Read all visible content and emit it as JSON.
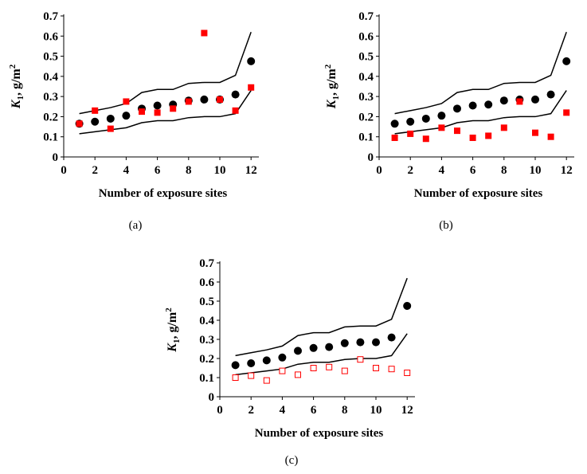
{
  "chart_data": [
    {
      "type": "scatter",
      "panel": "(a)",
      "xlabel": "Number of exposure sites",
      "ylabel_main": "K",
      "ylabel_sub": "1",
      "ylabel_unit": ", g/m",
      "ylabel_sup": "2",
      "xticks": [
        "0",
        "2",
        "4",
        "6",
        "8",
        "10",
        "12"
      ],
      "yticks": [
        "0",
        "0.1",
        "0.2",
        "0.3",
        "0.4",
        "0.5",
        "0.6",
        "0.7"
      ],
      "xlim": [
        0,
        12.5
      ],
      "ylim": [
        0,
        0.7
      ],
      "x": [
        1,
        2,
        3,
        4,
        5,
        6,
        7,
        8,
        9,
        10,
        11,
        12
      ],
      "mean": [
        0.165,
        0.175,
        0.19,
        0.205,
        0.24,
        0.255,
        0.26,
        0.28,
        0.285,
        0.285,
        0.31,
        0.475
      ],
      "upper": [
        0.215,
        0.23,
        0.245,
        0.265,
        0.32,
        0.335,
        0.335,
        0.365,
        0.37,
        0.37,
        0.405,
        0.62
      ],
      "lower": [
        0.115,
        0.125,
        0.135,
        0.145,
        0.17,
        0.18,
        0.18,
        0.195,
        0.2,
        0.2,
        0.215,
        0.33
      ],
      "series_label": "",
      "values": [
        0.165,
        0.23,
        0.14,
        0.275,
        0.225,
        0.22,
        0.24,
        0.275,
        0.615,
        0.285,
        0.23,
        0.345
      ],
      "marker": "filled",
      "color": "#ff0000"
    },
    {
      "type": "scatter",
      "panel": "(b)",
      "xlabel": "Number of exposure sites",
      "ylabel_main": "K",
      "ylabel_sub": "1",
      "ylabel_unit": ", g/m",
      "ylabel_sup": "2",
      "xticks": [
        "0",
        "2",
        "4",
        "6",
        "8",
        "10",
        "12"
      ],
      "yticks": [
        "0",
        "0.1",
        "0.2",
        "0.3",
        "0.4",
        "0.5",
        "0.6",
        "0.7"
      ],
      "xlim": [
        0,
        12.5
      ],
      "ylim": [
        0,
        0.7
      ],
      "x": [
        1,
        2,
        3,
        4,
        5,
        6,
        7,
        8,
        9,
        10,
        11,
        12
      ],
      "mean": [
        0.165,
        0.175,
        0.19,
        0.205,
        0.24,
        0.255,
        0.26,
        0.28,
        0.285,
        0.285,
        0.31,
        0.475
      ],
      "upper": [
        0.215,
        0.23,
        0.245,
        0.265,
        0.32,
        0.335,
        0.335,
        0.365,
        0.37,
        0.37,
        0.405,
        0.62
      ],
      "lower": [
        0.115,
        0.125,
        0.135,
        0.145,
        0.17,
        0.18,
        0.18,
        0.195,
        0.2,
        0.2,
        0.215,
        0.33
      ],
      "values": [
        0.095,
        0.115,
        0.09,
        0.145,
        0.13,
        0.095,
        0.105,
        0.145,
        0.275,
        0.12,
        0.1,
        0.22
      ],
      "marker": "filled",
      "color": "#ff0000"
    },
    {
      "type": "scatter",
      "panel": "(c)",
      "xlabel": "Number of exposure sites",
      "ylabel_main": "K",
      "ylabel_sub": "1",
      "ylabel_unit": ", g/m",
      "ylabel_sup": "2",
      "xticks": [
        "0",
        "2",
        "4",
        "6",
        "8",
        "10",
        "12"
      ],
      "yticks": [
        "0",
        "0.1",
        "0.2",
        "0.3",
        "0.4",
        "0.5",
        "0.6",
        "0.7"
      ],
      "xlim": [
        0,
        12.5
      ],
      "ylim": [
        0,
        0.7
      ],
      "x": [
        1,
        2,
        3,
        4,
        5,
        6,
        7,
        8,
        9,
        10,
        11,
        12
      ],
      "mean": [
        0.165,
        0.175,
        0.19,
        0.205,
        0.24,
        0.255,
        0.26,
        0.28,
        0.285,
        0.285,
        0.31,
        0.475
      ],
      "upper": [
        0.215,
        0.23,
        0.245,
        0.265,
        0.32,
        0.335,
        0.335,
        0.365,
        0.37,
        0.37,
        0.405,
        0.62
      ],
      "lower": [
        0.115,
        0.125,
        0.135,
        0.145,
        0.17,
        0.18,
        0.18,
        0.195,
        0.2,
        0.2,
        0.215,
        0.33
      ],
      "values": [
        0.1,
        0.11,
        0.085,
        0.135,
        0.115,
        0.15,
        0.155,
        0.135,
        0.195,
        0.15,
        0.145,
        0.125
      ],
      "marker": "open",
      "color": "#ff0000"
    }
  ]
}
